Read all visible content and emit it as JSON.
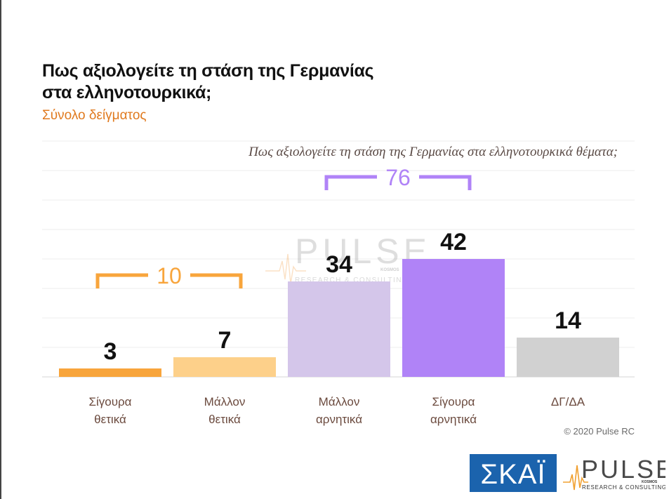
{
  "title_line1": "Πως αξιολογείτε τη στάση της Γερμανίας",
  "title_line2": "στα ελληνοτουρκικά;",
  "subtitle": "Σύνολο δείγματος",
  "question": "Πως αξιολογείτε τη στάση της Γερμανίας στα ελληνοτουρκικά θέματα;",
  "copyright": "© 2020 Pulse RC",
  "watermark": {
    "word": "PULSE",
    "tag": "KOSMOS",
    "sub": "RESEARCH & CONSULTING"
  },
  "logos": {
    "skai": {
      "text": "ΣΚΑΪ",
      "color": "#1b63ad"
    },
    "pulse": {
      "word": "PULSE",
      "tag": "KOSMOS",
      "sub": "RESEARCH & CONSULTING"
    }
  },
  "chart_data": {
    "type": "bar",
    "categories": [
      [
        "Σίγουρα",
        "θετικά"
      ],
      [
        "Μάλλον",
        "θετικά"
      ],
      [
        "Μάλλον",
        "αρνητικά"
      ],
      [
        "Σίγουρα",
        "αρνητικά"
      ],
      [
        "ΔΓ/ΔΑ"
      ]
    ],
    "values": [
      3,
      7,
      34,
      42,
      14
    ],
    "colors": [
      "#f8a53c",
      "#fdd08a",
      "#d4c6ea",
      "#b083f7",
      "#d1d1d1"
    ],
    "ylim": [
      0,
      84
    ],
    "grid": true,
    "groups": [
      {
        "label": "10",
        "from": 0,
        "to": 1,
        "color": "#f8a53c"
      },
      {
        "label": "76",
        "from": 2,
        "to": 3,
        "color": "#b083f7"
      }
    ]
  }
}
